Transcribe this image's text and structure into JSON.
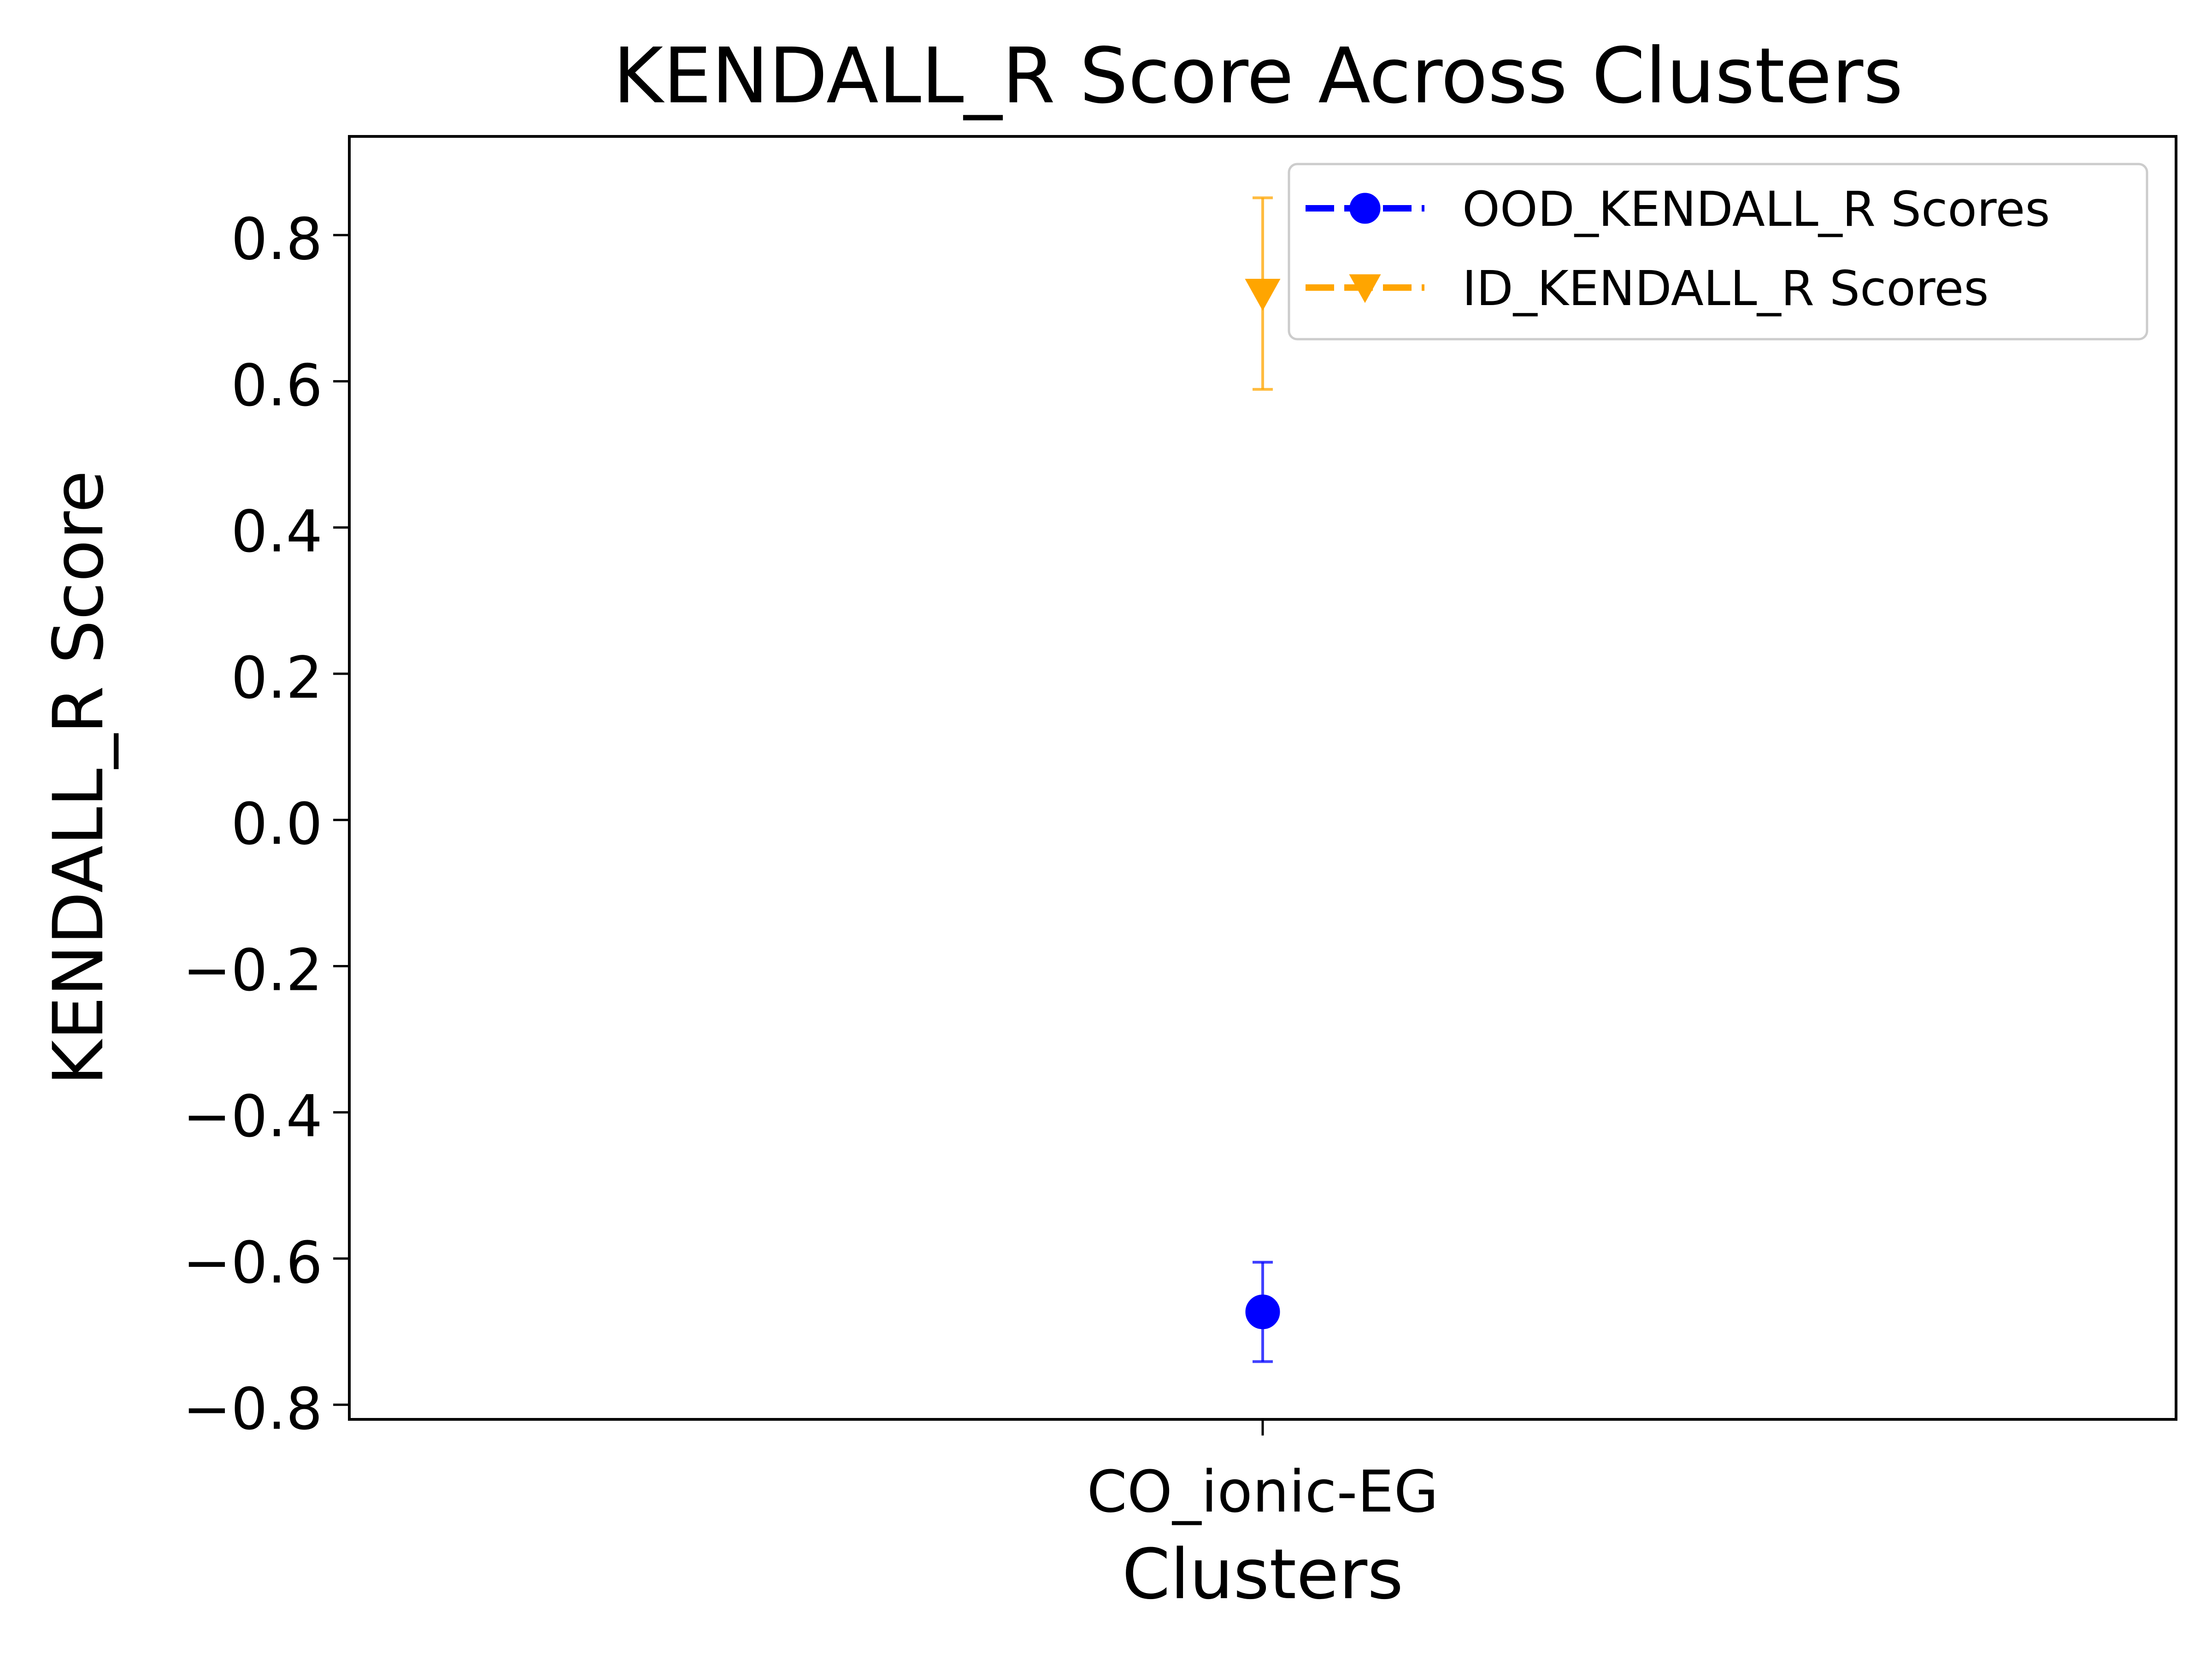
{
  "chart_data": {
    "type": "scatter",
    "title": "KENDALL_R Score Across Clusters",
    "xlabel": "Clusters",
    "ylabel": "KENDALL_R Score",
    "categories": [
      "CO_ionic-EG"
    ],
    "ylim": [
      -0.82,
      0.935
    ],
    "yticks": [
      0.8,
      0.6,
      0.4,
      0.2,
      0.0,
      -0.2,
      -0.4,
      -0.6,
      -0.8
    ],
    "ytick_labels": [
      "0.8",
      "0.6",
      "0.4",
      "0.2",
      "0.0",
      "−0.2",
      "−0.4",
      "−0.6",
      "−0.8"
    ],
    "grid": false,
    "legend_position": "top-right",
    "series": [
      {
        "name": "OOD_KENDALL_R Scores",
        "marker": "circle",
        "color": "#0000ff",
        "values": [
          -0.673
        ],
        "error": [
          0.068
        ]
      },
      {
        "name": "ID_KENDALL_R Scores",
        "marker": "triangle-down",
        "color": "#ffa500",
        "values": [
          0.72
        ],
        "error": [
          0.131
        ]
      }
    ]
  }
}
